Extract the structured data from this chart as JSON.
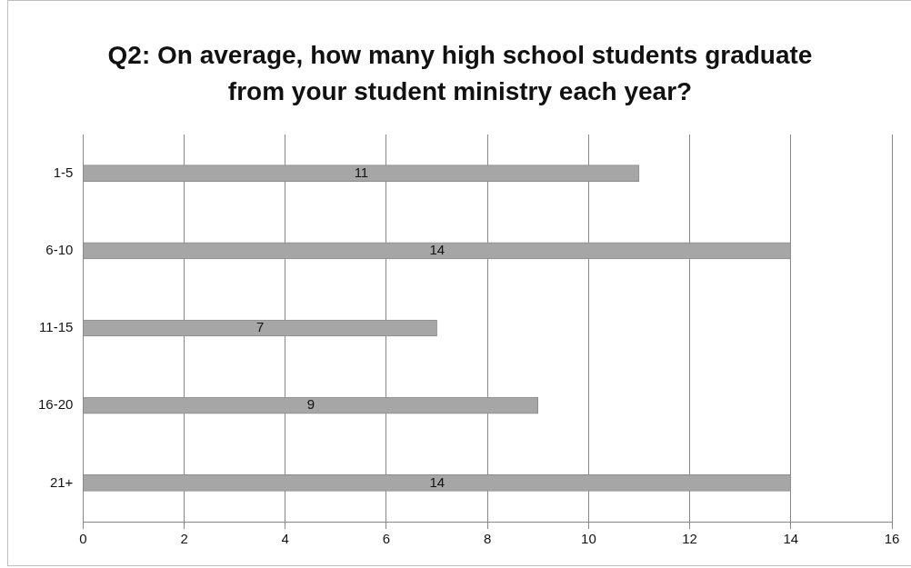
{
  "chart_data": {
    "type": "bar",
    "orientation": "horizontal",
    "title": "Q2: On average, how many high school students graduate from your student ministry each year?",
    "categories": [
      "1-5",
      "6-10",
      "11-15",
      "16-20",
      "21+"
    ],
    "values": [
      11,
      14,
      7,
      9,
      14
    ],
    "color": "#a6a6a6",
    "xlim": [
      0,
      16
    ],
    "xticks": [
      0,
      2,
      4,
      6,
      8,
      10,
      12,
      14,
      16
    ],
    "grid": "x",
    "data_labels": true
  }
}
